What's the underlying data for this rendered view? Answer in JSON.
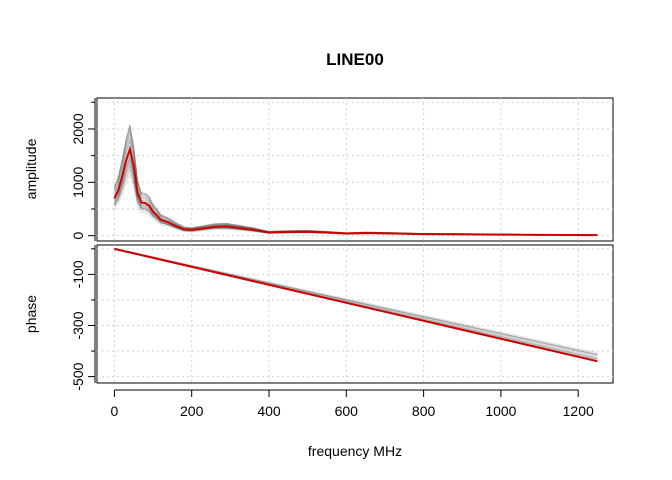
{
  "chart_data": {
    "type": "line",
    "title": "LINE00",
    "xlabel": "frequency MHz",
    "xlim": [
      -45,
      1290
    ],
    "x_ticks": [
      0,
      200,
      400,
      600,
      800,
      1000,
      1200
    ],
    "x_tick_labels": [
      "0",
      "200",
      "400",
      "600",
      "800",
      "1000",
      "1200"
    ],
    "grid": true,
    "panels": [
      {
        "name": "amplitude",
        "ylabel": "amplitude",
        "ylim": [
          -100,
          2580
        ],
        "y_ticks": [
          0,
          1000,
          2000
        ],
        "y_tick_labels": [
          "0",
          "1000",
          "2000"
        ],
        "y_minor_ticks": [
          500,
          1500,
          2500
        ],
        "series": [
          {
            "color": "#cc0000",
            "style": "mean",
            "x": [
              0,
              10,
              20,
              30,
              40,
              50,
              60,
              70,
              80,
              90,
              100,
              110,
              120,
              140,
              160,
              180,
              200,
              230,
              260,
              290,
              320,
              360,
              400,
              450,
              500,
              550,
              600,
              650,
              700,
              800,
              900,
              1000,
              1100,
              1250
            ],
            "y": [
              700,
              850,
              1100,
              1400,
              1620,
              1300,
              800,
              620,
              610,
              560,
              450,
              380,
              300,
              250,
              180,
              120,
              110,
              140,
              170,
              175,
              150,
              110,
              60,
              70,
              75,
              60,
              40,
              50,
              45,
              30,
              25,
              20,
              15,
              10
            ]
          }
        ],
        "spread_color": "#555555"
      },
      {
        "name": "phase",
        "ylabel": "phase",
        "ylim": [
          -525,
          15
        ],
        "y_ticks": [
          -500,
          -300,
          -100
        ],
        "y_tick_labels": [
          "-500",
          "-300",
          "-100"
        ],
        "y_minor_ticks": [
          -400,
          -200,
          0
        ],
        "series": [
          {
            "color": "#cc0000",
            "style": "mean",
            "x": [
              0,
              1250
            ],
            "y": [
              0,
              -440
            ]
          }
        ],
        "spread_color": "#888888"
      }
    ]
  }
}
